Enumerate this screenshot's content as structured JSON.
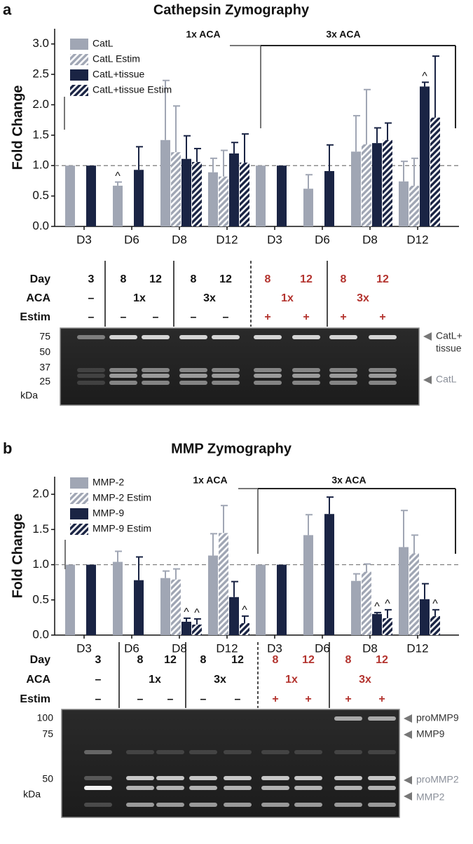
{
  "chart_data": [
    {
      "type": "bar",
      "panel": "a",
      "title": "Cathepsin Zymography",
      "ylabel": "Fold Change",
      "categories": [
        "D3",
        "D6",
        "D8",
        "D12",
        "D3",
        "D6",
        "D8",
        "D12"
      ],
      "ylim": [
        0,
        3.25
      ],
      "yticks": [
        {
          "value": 0,
          "label": "0.0"
        },
        0.5,
        {
          "value": 1,
          "label": "1.0"
        },
        1.5,
        {
          "value": 2,
          "label": "2.0"
        },
        2.5,
        {
          "value": 3,
          "label": "3.0"
        }
      ],
      "reference_line": 1,
      "groups": [
        "1x ACA",
        "3x ACA"
      ],
      "series": [
        {
          "name": "CatL",
          "color": "#a0a6b4",
          "hatched": false,
          "values": [
            1,
            0.67,
            1.42,
            0.89,
            1,
            0.62,
            1.23,
            0.74
          ],
          "errors": [
            null,
            0.06,
            0.98,
            0.23,
            null,
            0.23,
            0.59,
            0.33
          ],
          "annotations": [
            null,
            "^",
            null,
            null,
            null,
            null,
            null,
            null
          ]
        },
        {
          "name": "CatL Estim",
          "color": "#a0a6b4",
          "hatched": true,
          "values": [
            null,
            null,
            1.22,
            0.82,
            null,
            null,
            1.35,
            0.67
          ],
          "errors": [
            null,
            null,
            0.76,
            0.43,
            null,
            null,
            0.9,
            0.45
          ],
          "annotations": [
            null,
            null,
            null,
            null,
            null,
            null,
            null,
            null
          ]
        },
        {
          "name": "CatL+tissue",
          "color": "#1a2444",
          "hatched": false,
          "values": [
            1,
            0.93,
            1.11,
            1.2,
            1,
            0.91,
            1.37,
            2.3
          ],
          "errors": [
            null,
            0.38,
            0.38,
            0.18,
            null,
            0.43,
            0.25,
            0.07
          ],
          "annotations": [
            null,
            null,
            null,
            null,
            null,
            null,
            null,
            "^"
          ]
        },
        {
          "name": "CatL+tissue Estim",
          "color": "#1a2444",
          "hatched": true,
          "values": [
            null,
            null,
            1.06,
            1.05,
            null,
            null,
            1.42,
            1.79
          ],
          "errors": [
            null,
            null,
            0.22,
            0.47,
            null,
            null,
            0.28,
            1.01
          ],
          "annotations": [
            null,
            null,
            null,
            null,
            null,
            null,
            null,
            null
          ]
        }
      ]
    },
    {
      "type": "bar",
      "panel": "b",
      "title": "MMP Zymography",
      "ylabel": "Fold Change",
      "categories": [
        "D3",
        "D6",
        "D8",
        "D12",
        "D3",
        "D6",
        "D8",
        "D12"
      ],
      "ylim": [
        0,
        2.25
      ],
      "yticks": [
        {
          "value": 0,
          "label": "0.0"
        },
        0.5,
        {
          "value": 1,
          "label": "1.0"
        },
        1.5,
        {
          "value": 2,
          "label": "2.0"
        }
      ],
      "reference_line": 1,
      "groups": [
        "1x ACA",
        "3x ACA"
      ],
      "series": [
        {
          "name": "MMP-2",
          "color": "#a0a6b4",
          "hatched": false,
          "values": [
            1,
            1.04,
            0.81,
            1.13,
            1,
            1.42,
            0.77,
            1.25
          ],
          "errors": [
            null,
            0.15,
            0.1,
            0.31,
            null,
            0.29,
            0.1,
            0.52
          ],
          "annotations": [
            null,
            null,
            null,
            null,
            null,
            null,
            null,
            null
          ]
        },
        {
          "name": "MMP-2 Estim",
          "color": "#a0a6b4",
          "hatched": true,
          "values": [
            null,
            null,
            0.79,
            1.45,
            null,
            null,
            0.9,
            1.16
          ],
          "errors": [
            null,
            null,
            0.15,
            0.39,
            null,
            null,
            0.11,
            0.26
          ],
          "annotations": [
            null,
            null,
            null,
            null,
            null,
            null,
            null,
            null
          ]
        },
        {
          "name": "MMP-9",
          "color": "#1a2444",
          "hatched": false,
          "values": [
            1,
            0.78,
            0.19,
            0.54,
            1,
            1.72,
            0.3,
            0.51
          ],
          "errors": [
            null,
            0.33,
            0.05,
            0.22,
            null,
            0.24,
            0.02,
            0.22
          ],
          "annotations": [
            null,
            null,
            "^",
            null,
            null,
            null,
            "^",
            null
          ]
        },
        {
          "name": "MMP-9 Estim",
          "color": "#1a2444",
          "hatched": true,
          "values": [
            null,
            null,
            0.15,
            0.17,
            null,
            null,
            0.24,
            0.27
          ],
          "errors": [
            null,
            null,
            0.08,
            0.1,
            null,
            null,
            0.12,
            0.09
          ],
          "annotations": [
            null,
            null,
            "^",
            "^",
            null,
            null,
            "^",
            "^"
          ]
        }
      ]
    }
  ],
  "gels": [
    {
      "rows": [
        {
          "label": "Day",
          "cells": [
            3,
            8,
            12,
            8,
            12,
            8,
            12,
            8,
            12
          ],
          "colors": [
            "#111",
            "#111",
            "#111",
            "#111",
            "#111",
            "#b3332e",
            "#b3332e",
            "#b3332e",
            "#b3332e"
          ]
        },
        {
          "label": "ACA",
          "cells": [
            "–",
            "1x",
            "3x",
            "1x",
            "3x"
          ],
          "colors": [
            "#111",
            "#111",
            "#111",
            "#b3332e",
            "#b3332e"
          ]
        },
        {
          "label": "Estim",
          "cells": [
            "–",
            "–",
            "–",
            "–",
            "–",
            "+",
            "+",
            "+",
            "+"
          ],
          "colors": [
            "#111",
            "#111",
            "#111",
            "#111",
            "#111",
            "#b3332e",
            "#b3332e",
            "#b3332e",
            "#b3332e"
          ]
        }
      ],
      "ladder": [
        75,
        50,
        37,
        25
      ],
      "ladder_unit": "kDa",
      "bands": [
        {
          "lines": [
            "CatL+",
            "tissue"
          ],
          "color": "#333"
        },
        {
          "lines": [
            "CatL"
          ],
          "color": "#8a8f99"
        }
      ]
    },
    {
      "rows": [
        {
          "label": "Day",
          "cells": [
            3,
            8,
            12,
            8,
            12,
            8,
            12,
            8,
            12
          ],
          "colors": [
            "#111",
            "#111",
            "#111",
            "#111",
            "#111",
            "#b3332e",
            "#b3332e",
            "#b3332e",
            "#b3332e"
          ]
        },
        {
          "label": "ACA",
          "cells": [
            "–",
            "1x",
            "3x",
            "1x",
            "3x"
          ],
          "colors": [
            "#111",
            "#111",
            "#111",
            "#b3332e",
            "#b3332e"
          ]
        },
        {
          "label": "Estim",
          "cells": [
            "–",
            "–",
            "–",
            "–",
            "–",
            "+",
            "+",
            "+",
            "+"
          ],
          "colors": [
            "#111",
            "#111",
            "#111",
            "#111",
            "#111",
            "#b3332e",
            "#b3332e",
            "#b3332e",
            "#b3332e"
          ]
        }
      ],
      "ladder": [
        100,
        75,
        50
      ],
      "ladder_unit": "kDa",
      "bands": [
        {
          "lines": [
            "proMMP9"
          ],
          "color": "#333"
        },
        {
          "lines": [
            "MMP9"
          ],
          "color": "#333"
        },
        {
          "lines": [
            "proMMP2"
          ],
          "color": "#8a8f99"
        },
        {
          "lines": [
            "MMP2"
          ],
          "color": "#8a8f99"
        }
      ]
    }
  ]
}
